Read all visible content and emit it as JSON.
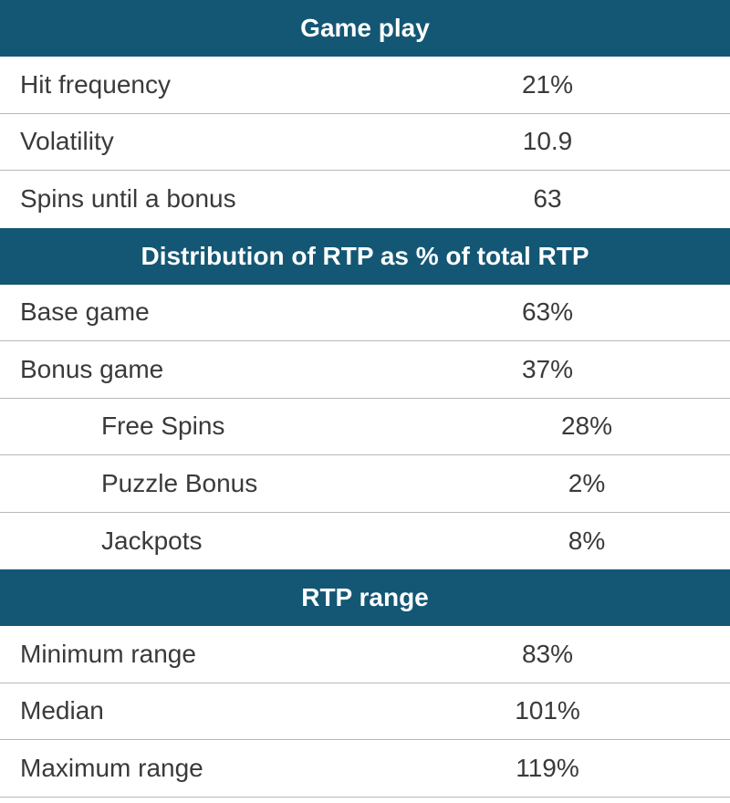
{
  "sections": [
    {
      "title": "Game play",
      "rows": [
        {
          "label": "Hit frequency",
          "value": "21%"
        },
        {
          "label": "Volatility",
          "value": "10.9"
        },
        {
          "label": "Spins until a bonus",
          "value": "63"
        }
      ]
    },
    {
      "title": "Distribution of RTP as % of total RTP",
      "rows": [
        {
          "label": "Base game",
          "value": "63%"
        },
        {
          "label": "Bonus game",
          "value": "37%"
        },
        {
          "label": "Free Spins",
          "value": "28%"
        },
        {
          "label": "Puzzle Bonus",
          "value": "2%"
        },
        {
          "label": "Jackpots",
          "value": "8%"
        }
      ]
    },
    {
      "title": "RTP range",
      "rows": [
        {
          "label": "Minimum range",
          "value": "83%"
        },
        {
          "label": "Median",
          "value": "101%"
        },
        {
          "label": "Maximum range",
          "value": "119%"
        }
      ]
    }
  ],
  "colors": {
    "header_bg": "#135775",
    "header_text": "#ffffff",
    "row_text": "#3a3a3a",
    "divider": "#b8b8b8"
  }
}
